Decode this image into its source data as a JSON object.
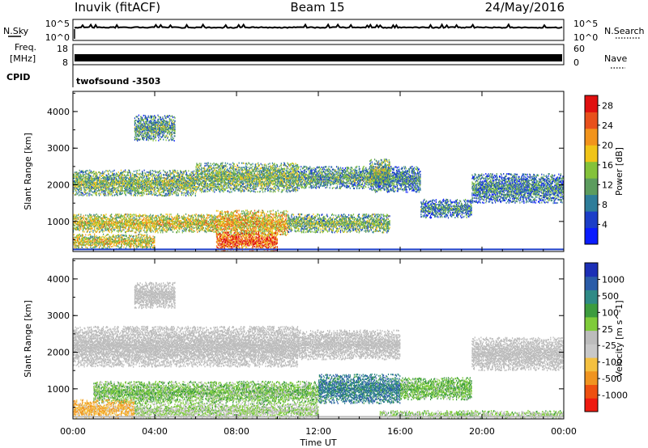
{
  "header": {
    "radar": "Inuvik (fitACF)",
    "beam": "Beam 15",
    "date": "24/May/2016"
  },
  "top_panels": {
    "nsky_label": "N.Sky",
    "nsearch_label": "N.Search",
    "noise_left_ticks": [
      "10^5",
      "10^0"
    ],
    "noise_right_ticks": [
      "10^5",
      "10^0"
    ],
    "freq_label_1": "Freq.",
    "freq_label_2": "[MHz]",
    "freq_ticks": [
      "18",
      "8"
    ],
    "nave_label": "Nave",
    "nave_ticks": [
      "60",
      "0"
    ],
    "cpid_label": "CPID",
    "cpid_value": "twofsound -3503"
  },
  "chart_data": [
    {
      "type": "heatmap",
      "title": "",
      "xlabel": "Time UT",
      "ylabel": "Slant Range [km]",
      "x_ticks": [
        "00:00",
        "04:00",
        "08:00",
        "12:00",
        "16:00",
        "20:00",
        "00:00"
      ],
      "xlim_hours": [
        0,
        24
      ],
      "y_ticks": [
        1000,
        2000,
        3000,
        4000
      ],
      "ylim_km": [
        180,
        4550
      ],
      "colorbar": {
        "label": "Power [dB]",
        "ticks": [
          "4",
          "8",
          "12",
          "16",
          "20",
          "24",
          "28"
        ],
        "range": [
          0,
          30
        ],
        "colors": [
          "#0a1cff",
          "#1c3ec8",
          "#2e7d9a",
          "#5c9c5e",
          "#84c23a",
          "#f0c418",
          "#f2941c",
          "#e8501c",
          "#e01010"
        ]
      },
      "bands": [
        {
          "t0": 0.0,
          "t1": 6.0,
          "r0": 1700,
          "r1": 2400,
          "level": 14
        },
        {
          "t0": 6.0,
          "t1": 11.0,
          "r0": 1800,
          "r1": 2600,
          "level": 14
        },
        {
          "t0": 11.0,
          "t1": 14.5,
          "r0": 1900,
          "r1": 2500,
          "level": 12
        },
        {
          "t0": 14.5,
          "t1": 17.0,
          "r0": 1800,
          "r1": 2500,
          "level": 10
        },
        {
          "t0": 17.0,
          "t1": 19.5,
          "r0": 1100,
          "r1": 1600,
          "level": 10
        },
        {
          "t0": 19.5,
          "t1": 24.0,
          "r0": 1500,
          "r1": 2300,
          "level": 10
        },
        {
          "t0": 0.0,
          "t1": 7.0,
          "r0": 700,
          "r1": 1200,
          "level": 18
        },
        {
          "t0": 7.0,
          "t1": 10.5,
          "r0": 600,
          "r1": 1300,
          "level": 20
        },
        {
          "t0": 10.5,
          "t1": 15.5,
          "r0": 700,
          "r1": 1200,
          "level": 14
        },
        {
          "t0": 0.0,
          "t1": 4.0,
          "r0": 250,
          "r1": 650,
          "level": 18
        },
        {
          "t0": 7.0,
          "t1": 10.0,
          "r0": 200,
          "r1": 700,
          "level": 26
        },
        {
          "t0": 3.0,
          "t1": 5.0,
          "r0": 3200,
          "r1": 3900,
          "level": 12
        },
        {
          "t0": 14.5,
          "t1": 15.5,
          "r0": 2000,
          "r1": 2700,
          "level": 14
        }
      ]
    },
    {
      "type": "heatmap",
      "title": "",
      "xlabel": "Time UT",
      "ylabel": "Slant Range [km]",
      "x_ticks": [
        "00:00",
        "04:00",
        "08:00",
        "12:00",
        "16:00",
        "20:00",
        "00:00"
      ],
      "xlim_hours": [
        0,
        24
      ],
      "y_ticks": [
        1000,
        2000,
        3000,
        4000
      ],
      "ylim_km": [
        180,
        4550
      ],
      "colorbar": {
        "label": "Velocity [m s^-1]",
        "ticks": [
          "1000",
          "500",
          "100",
          "25",
          "-25",
          "-100",
          "-500",
          "-1000"
        ],
        "range": [
          -1200,
          1200
        ],
        "colors": [
          "#ee1a10",
          "#ee5010",
          "#f09420",
          "#f4c040",
          "#c8c8c8",
          "#bcbcbc",
          "#7fcc3a",
          "#3d9c3e",
          "#2f8a86",
          "#2a5ca8",
          "#1c2fb6"
        ]
      },
      "bands": [
        {
          "t0": 0.0,
          "t1": 11.0,
          "r0": 1600,
          "r1": 2700,
          "value": 0
        },
        {
          "t0": 11.0,
          "t1": 16.0,
          "r0": 1800,
          "r1": 2600,
          "value": 0
        },
        {
          "t0": 19.5,
          "t1": 24.0,
          "r0": 1500,
          "r1": 2400,
          "value": 0
        },
        {
          "t0": 1.0,
          "t1": 12.0,
          "r0": 600,
          "r1": 1200,
          "value": 250
        },
        {
          "t0": 12.0,
          "t1": 16.0,
          "r0": 600,
          "r1": 1400,
          "value": 700
        },
        {
          "t0": 16.0,
          "t1": 19.5,
          "r0": 700,
          "r1": 1300,
          "value": 300
        },
        {
          "t0": 0.0,
          "t1": 3.0,
          "r0": 200,
          "r1": 700,
          "value": -500
        },
        {
          "t0": 3.0,
          "t1": 12.0,
          "r0": 200,
          "r1": 600,
          "value": 120
        },
        {
          "t0": 15.0,
          "t1": 24.0,
          "r0": 200,
          "r1": 400,
          "value": 150
        },
        {
          "t0": 3.0,
          "t1": 5.0,
          "r0": 3200,
          "r1": 3900,
          "value": 0
        }
      ]
    }
  ]
}
